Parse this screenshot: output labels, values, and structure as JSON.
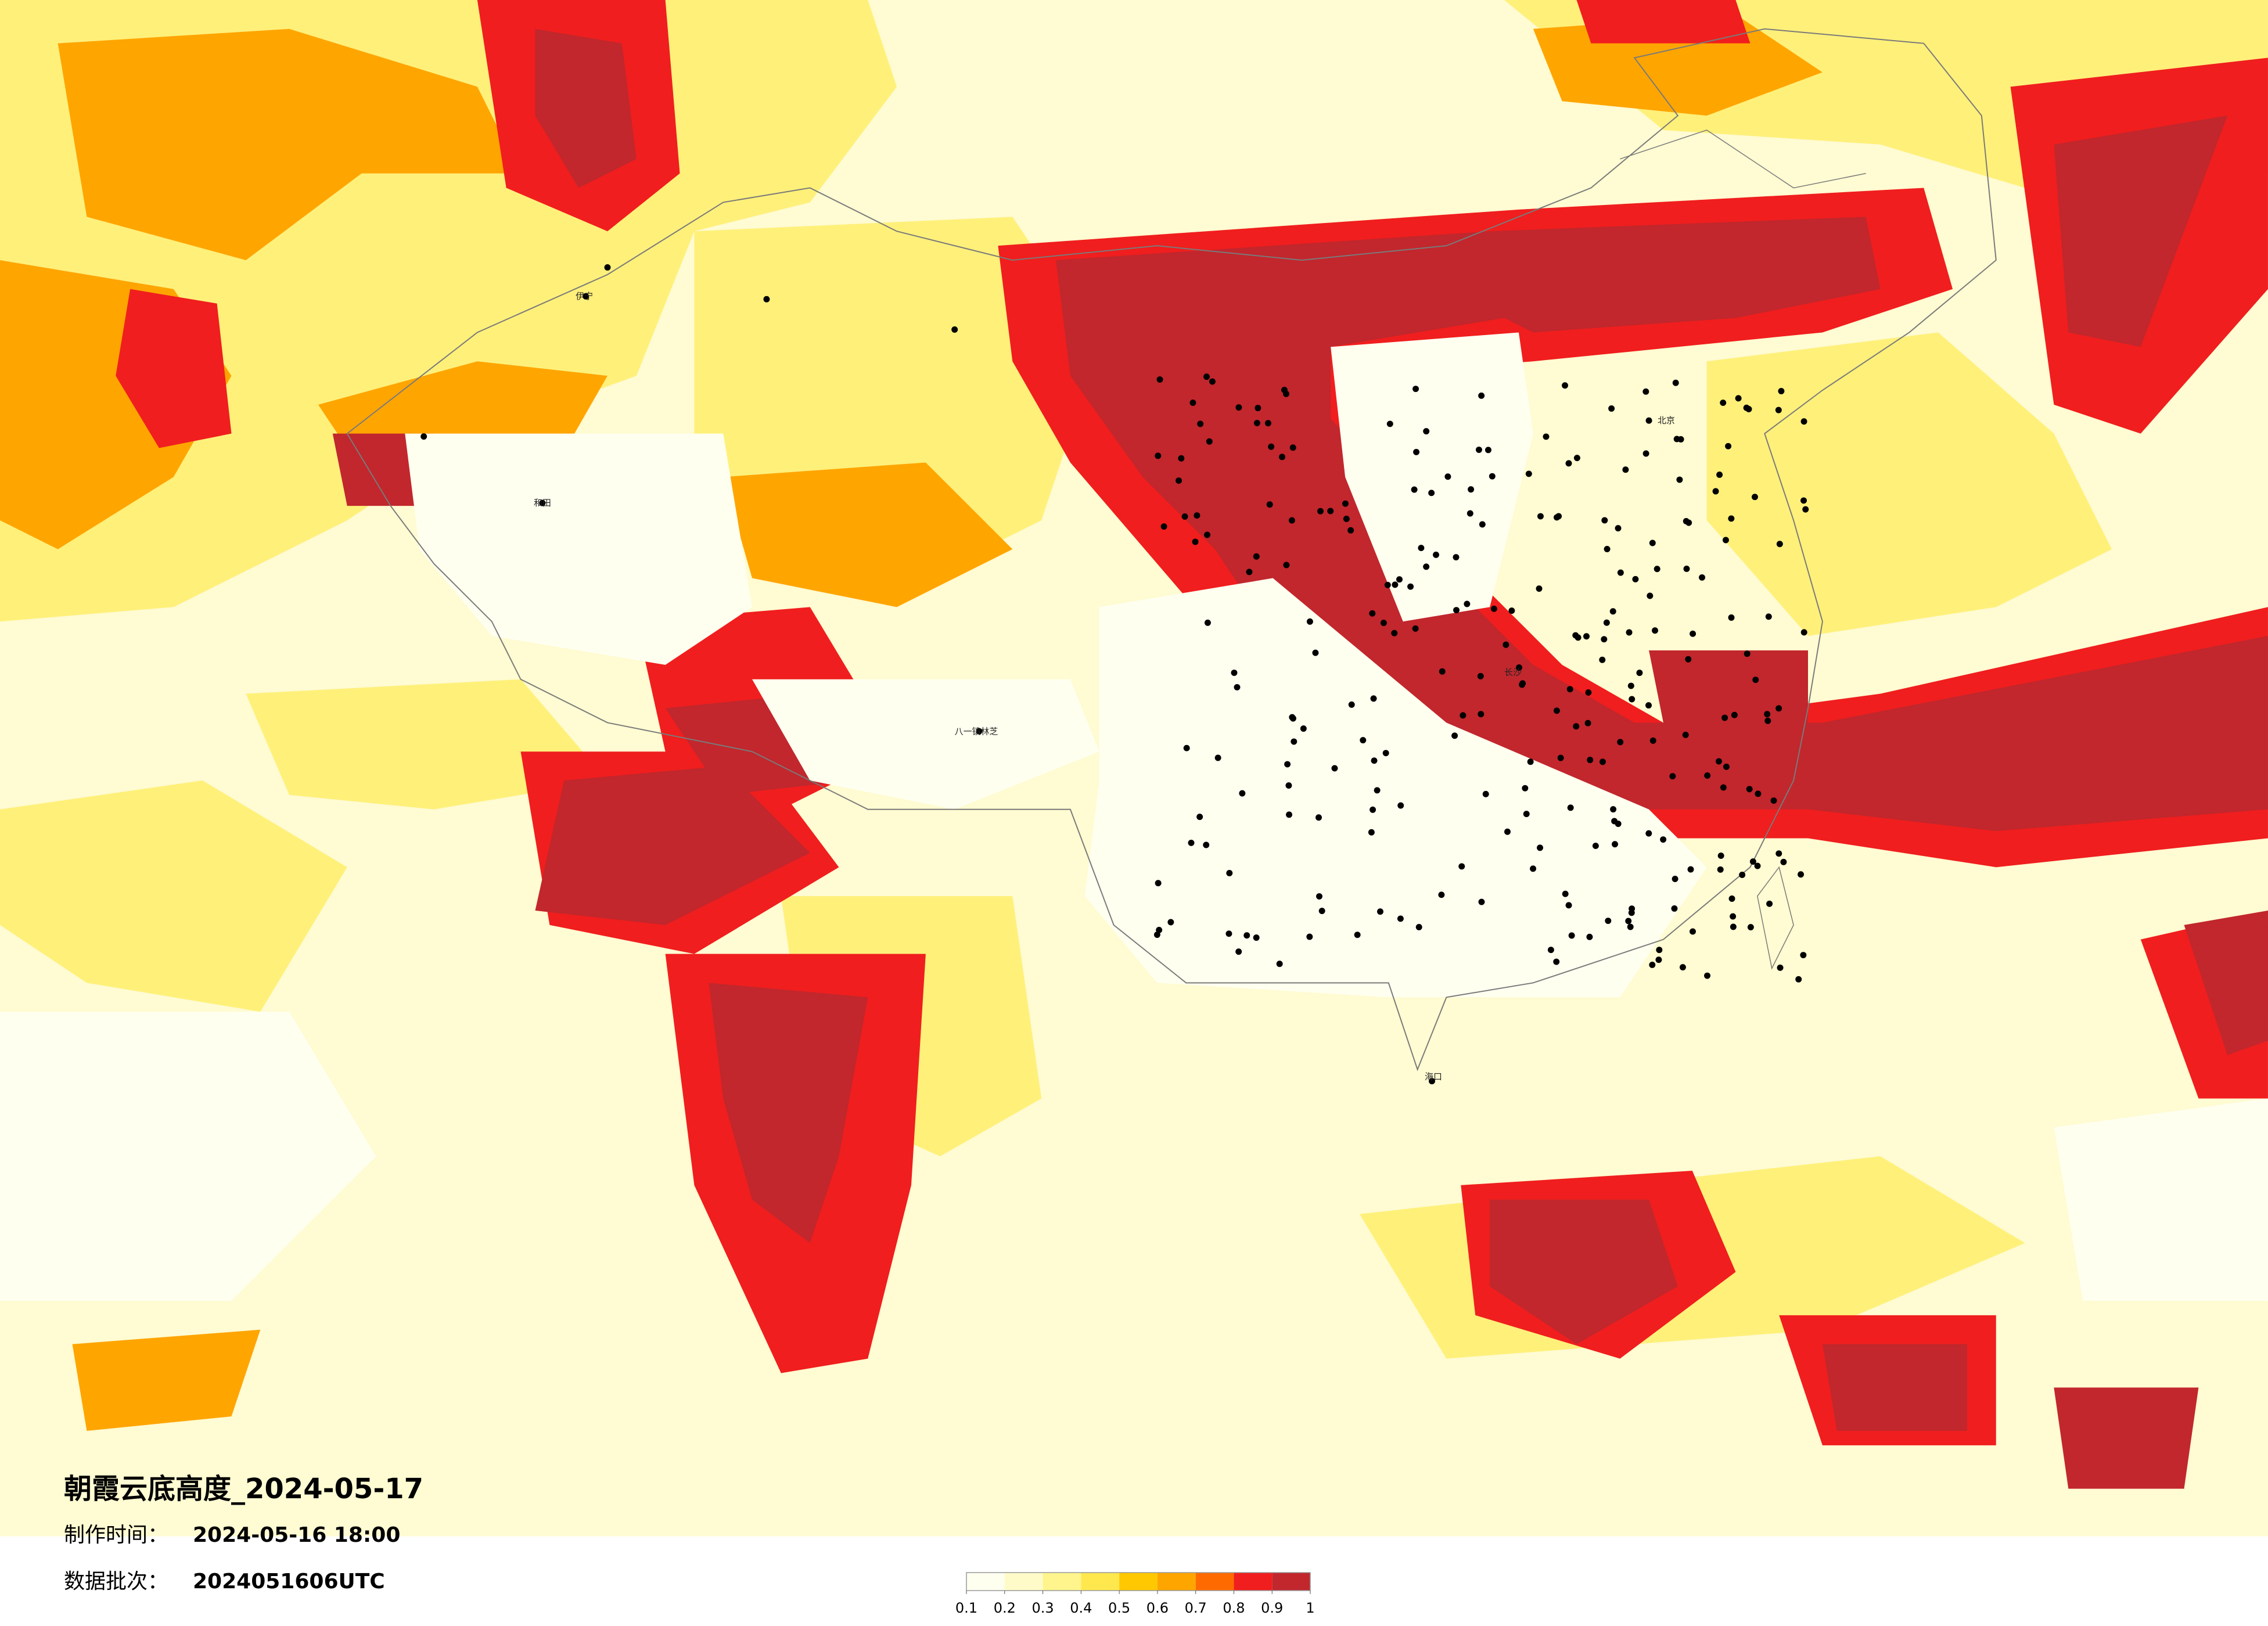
{
  "title": "朝霞云底高度_2024-05-17",
  "made_time": {
    "label": "制作时间：",
    "value": "2024-05-16 18:00"
  },
  "batch": {
    "label": "数据批次：",
    "value": "2024051606UTC"
  },
  "colorbar": {
    "ticks": [
      0.1,
      0.2,
      0.3,
      0.4,
      0.5,
      0.6,
      0.7,
      0.8,
      0.9,
      1
    ],
    "colors": [
      "#fffff0",
      "#fffbc8",
      "#fff58c",
      "#ffe84e",
      "#ffc800",
      "#ffa500",
      "#ff6a00",
      "#f01e1e",
      "#c1272d"
    ]
  },
  "cities": [
    {
      "name": "北京"
    },
    {
      "name": "八一镇林芝"
    },
    {
      "name": "和田"
    },
    {
      "name": "伊宁"
    },
    {
      "name": "长沙"
    },
    {
      "name": "海口"
    }
  ]
}
